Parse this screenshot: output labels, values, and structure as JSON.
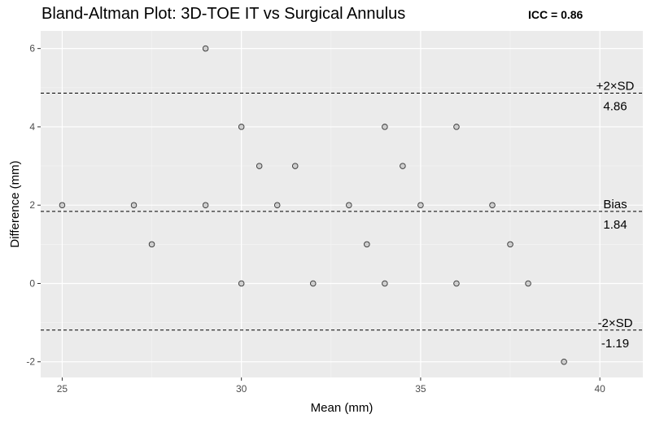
{
  "chart_data": {
    "type": "scatter",
    "title": "Bland-Altman Plot: 3D-TOE IT vs Surgical Annulus",
    "annotation": "ICC = 0.86",
    "xlabel": "Mean (mm)",
    "ylabel": "Difference (mm)",
    "xlim": [
      24.4,
      41.2
    ],
    "ylim": [
      -2.4,
      6.45
    ],
    "xticks": [
      25,
      30,
      35,
      40
    ],
    "yticks": [
      -2,
      0,
      2,
      4,
      6
    ],
    "grid": true,
    "points": [
      {
        "x": 25,
        "y": 2
      },
      {
        "x": 27,
        "y": 2
      },
      {
        "x": 27.5,
        "y": 1
      },
      {
        "x": 29,
        "y": 6
      },
      {
        "x": 29,
        "y": 2
      },
      {
        "x": 30,
        "y": 4
      },
      {
        "x": 30,
        "y": 0
      },
      {
        "x": 30.5,
        "y": 3
      },
      {
        "x": 31,
        "y": 2
      },
      {
        "x": 31.5,
        "y": 3
      },
      {
        "x": 32,
        "y": 0
      },
      {
        "x": 33,
        "y": 2
      },
      {
        "x": 33.5,
        "y": 1
      },
      {
        "x": 34,
        "y": 4
      },
      {
        "x": 34,
        "y": 0
      },
      {
        "x": 34.5,
        "y": 3
      },
      {
        "x": 35,
        "y": 2
      },
      {
        "x": 36,
        "y": 4
      },
      {
        "x": 36,
        "y": 0
      },
      {
        "x": 37,
        "y": 2
      },
      {
        "x": 37.5,
        "y": 1
      },
      {
        "x": 38,
        "y": 0
      },
      {
        "x": 39,
        "y": -2
      }
    ],
    "reference_lines": [
      {
        "name": "+2×SD",
        "value": 4.86,
        "value_label": "4.86"
      },
      {
        "name": "Bias",
        "value": 1.84,
        "value_label": "1.84"
      },
      {
        "name": "-2×SD",
        "value": -1.19,
        "value_label": "-1.19"
      }
    ],
    "colors": {
      "panel": "#ebebeb",
      "grid_major": "#ffffff",
      "grid_minor": "#f5f5f5",
      "point_fill": "#c8c8c8",
      "point_stroke": "#333333"
    }
  }
}
